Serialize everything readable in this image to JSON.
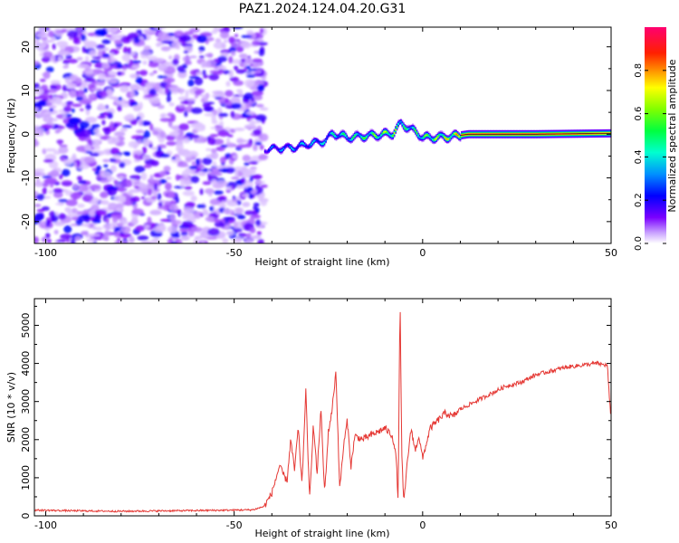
{
  "title": "PAZ1.2024.124.04.20.G31",
  "chart_data": [
    {
      "type": "heatmap",
      "xlabel": "Height of straight line (km)",
      "ylabel": "Frequency (Hz)",
      "xlim": [
        -103,
        50
      ],
      "ylim": [
        -25,
        24.5
      ],
      "xticks": [
        -100,
        -50,
        0,
        50
      ],
      "yticks": [
        -20,
        -10,
        0,
        10,
        20
      ],
      "colorbar": {
        "label": "Normalized spectral amplitude",
        "range": [
          0,
          1
        ],
        "ticks": [
          0.0,
          0.2,
          0.4,
          0.6,
          0.8
        ]
      },
      "noise_region_x": [
        -103,
        -42
      ],
      "signal_track": {
        "x": [
          -42,
          -38,
          -34,
          -30,
          -26,
          -24,
          -20,
          -16,
          -12,
          -8,
          -6,
          -4,
          -2,
          0,
          4,
          8,
          12,
          20,
          30,
          40,
          50
        ],
        "freq": [
          -3.5,
          -3.2,
          -3.0,
          -2.2,
          -1.5,
          0.2,
          -0.8,
          -0.4,
          -0.2,
          0.2,
          2.5,
          1.5,
          0.5,
          -0.8,
          -0.7,
          -0.5,
          0.0,
          0.0,
          0.0,
          0.1,
          0.2
        ],
        "amplitude": [
          0.3,
          0.35,
          0.4,
          0.4,
          0.45,
          0.5,
          0.55,
          0.6,
          0.7,
          0.75,
          0.6,
          0.55,
          0.6,
          0.65,
          0.75,
          0.85,
          0.9,
          0.92,
          0.92,
          0.9,
          0.85
        ]
      }
    },
    {
      "type": "line",
      "xlabel": "Height of straight line (km)",
      "ylabel": "SNR (10 * v/v)",
      "xlim": [
        -103,
        50
      ],
      "ylim": [
        0,
        5700
      ],
      "xticks": [
        -100,
        -50,
        0,
        50
      ],
      "yticks": [
        0,
        1000,
        2000,
        3000,
        4000,
        5000
      ],
      "color": "#e53935",
      "series": [
        {
          "x": [
            -103,
            -90,
            -80,
            -70,
            -60,
            -50,
            -45,
            -42,
            -40,
            -38,
            -36,
            -35,
            -34,
            -33,
            -32,
            -31,
            -30,
            -29,
            -28,
            -27,
            -26,
            -25,
            -24,
            -23,
            -22,
            -21,
            -20,
            -19,
            -18,
            -16,
            -14,
            -12,
            -10,
            -8,
            -7,
            -6.5,
            -6,
            -5.5,
            -5,
            -4,
            -3,
            -2,
            -1,
            0,
            2,
            4,
            6,
            8,
            10,
            14,
            18,
            22,
            26,
            30,
            34,
            38,
            42,
            46,
            49,
            50
          ],
          "y": [
            150,
            130,
            120,
            130,
            140,
            150,
            160,
            250,
            600,
            1300,
            900,
            2000,
            1200,
            2300,
            800,
            3300,
            400,
            2400,
            1100,
            2800,
            600,
            2200,
            2800,
            3800,
            700,
            1800,
            2500,
            1300,
            2100,
            2000,
            2100,
            2200,
            2300,
            2100,
            1500,
            400,
            5700,
            1500,
            300,
            1500,
            2300,
            1700,
            2100,
            1500,
            2300,
            2500,
            2700,
            2600,
            2800,
            3000,
            3200,
            3400,
            3500,
            3700,
            3800,
            3900,
            3950,
            4000,
            3950,
            2400
          ]
        }
      ]
    }
  ]
}
